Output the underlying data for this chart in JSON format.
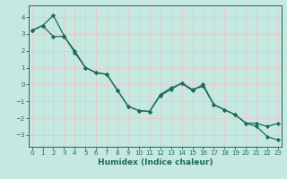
{
  "xlabel": "Humidex (Indice chaleur)",
  "background_color": "#c5e8e0",
  "grid_color": "#e8c8c8",
  "line_color": "#1a6b5a",
  "spine_color": "#1a6b5a",
  "xlim": [
    -0.3,
    23.3
  ],
  "ylim": [
    -3.7,
    4.7
  ],
  "yticks": [
    -3,
    -2,
    -1,
    0,
    1,
    2,
    3,
    4
  ],
  "xticks": [
    0,
    1,
    2,
    3,
    4,
    5,
    6,
    7,
    8,
    9,
    10,
    11,
    12,
    13,
    14,
    15,
    16,
    17,
    18,
    19,
    20,
    21,
    22,
    23
  ],
  "line1_x": [
    0,
    1,
    2,
    3,
    4,
    5,
    6,
    7,
    8,
    9,
    10,
    11,
    12,
    13,
    14,
    15,
    16,
    17,
    18,
    19,
    20,
    21,
    22,
    23
  ],
  "line1_y": [
    3.2,
    3.5,
    4.1,
    2.9,
    1.9,
    1.0,
    0.7,
    0.6,
    -0.35,
    -1.3,
    -1.55,
    -1.6,
    -0.65,
    -0.3,
    0.1,
    -0.3,
    -0.1,
    -1.2,
    -1.5,
    -1.8,
    -2.3,
    -2.5,
    -3.1,
    -3.3
  ],
  "line2_x": [
    0,
    1,
    2,
    3,
    4,
    5,
    6,
    7,
    8,
    9,
    10,
    11,
    12,
    13,
    14,
    15,
    16,
    17,
    18,
    19,
    20,
    21,
    22,
    23
  ],
  "line2_y": [
    3.2,
    3.5,
    2.85,
    2.85,
    2.0,
    1.0,
    0.7,
    0.6,
    -0.35,
    -1.3,
    -1.55,
    -1.6,
    -0.6,
    -0.2,
    0.05,
    -0.35,
    0.0,
    -1.2,
    -1.5,
    -1.8,
    -2.3,
    -2.3,
    -2.5,
    -2.3
  ],
  "xlabel_fontsize": 6.5,
  "tick_fontsize": 5.0,
  "linewidth": 0.9,
  "markersize": 2.2
}
